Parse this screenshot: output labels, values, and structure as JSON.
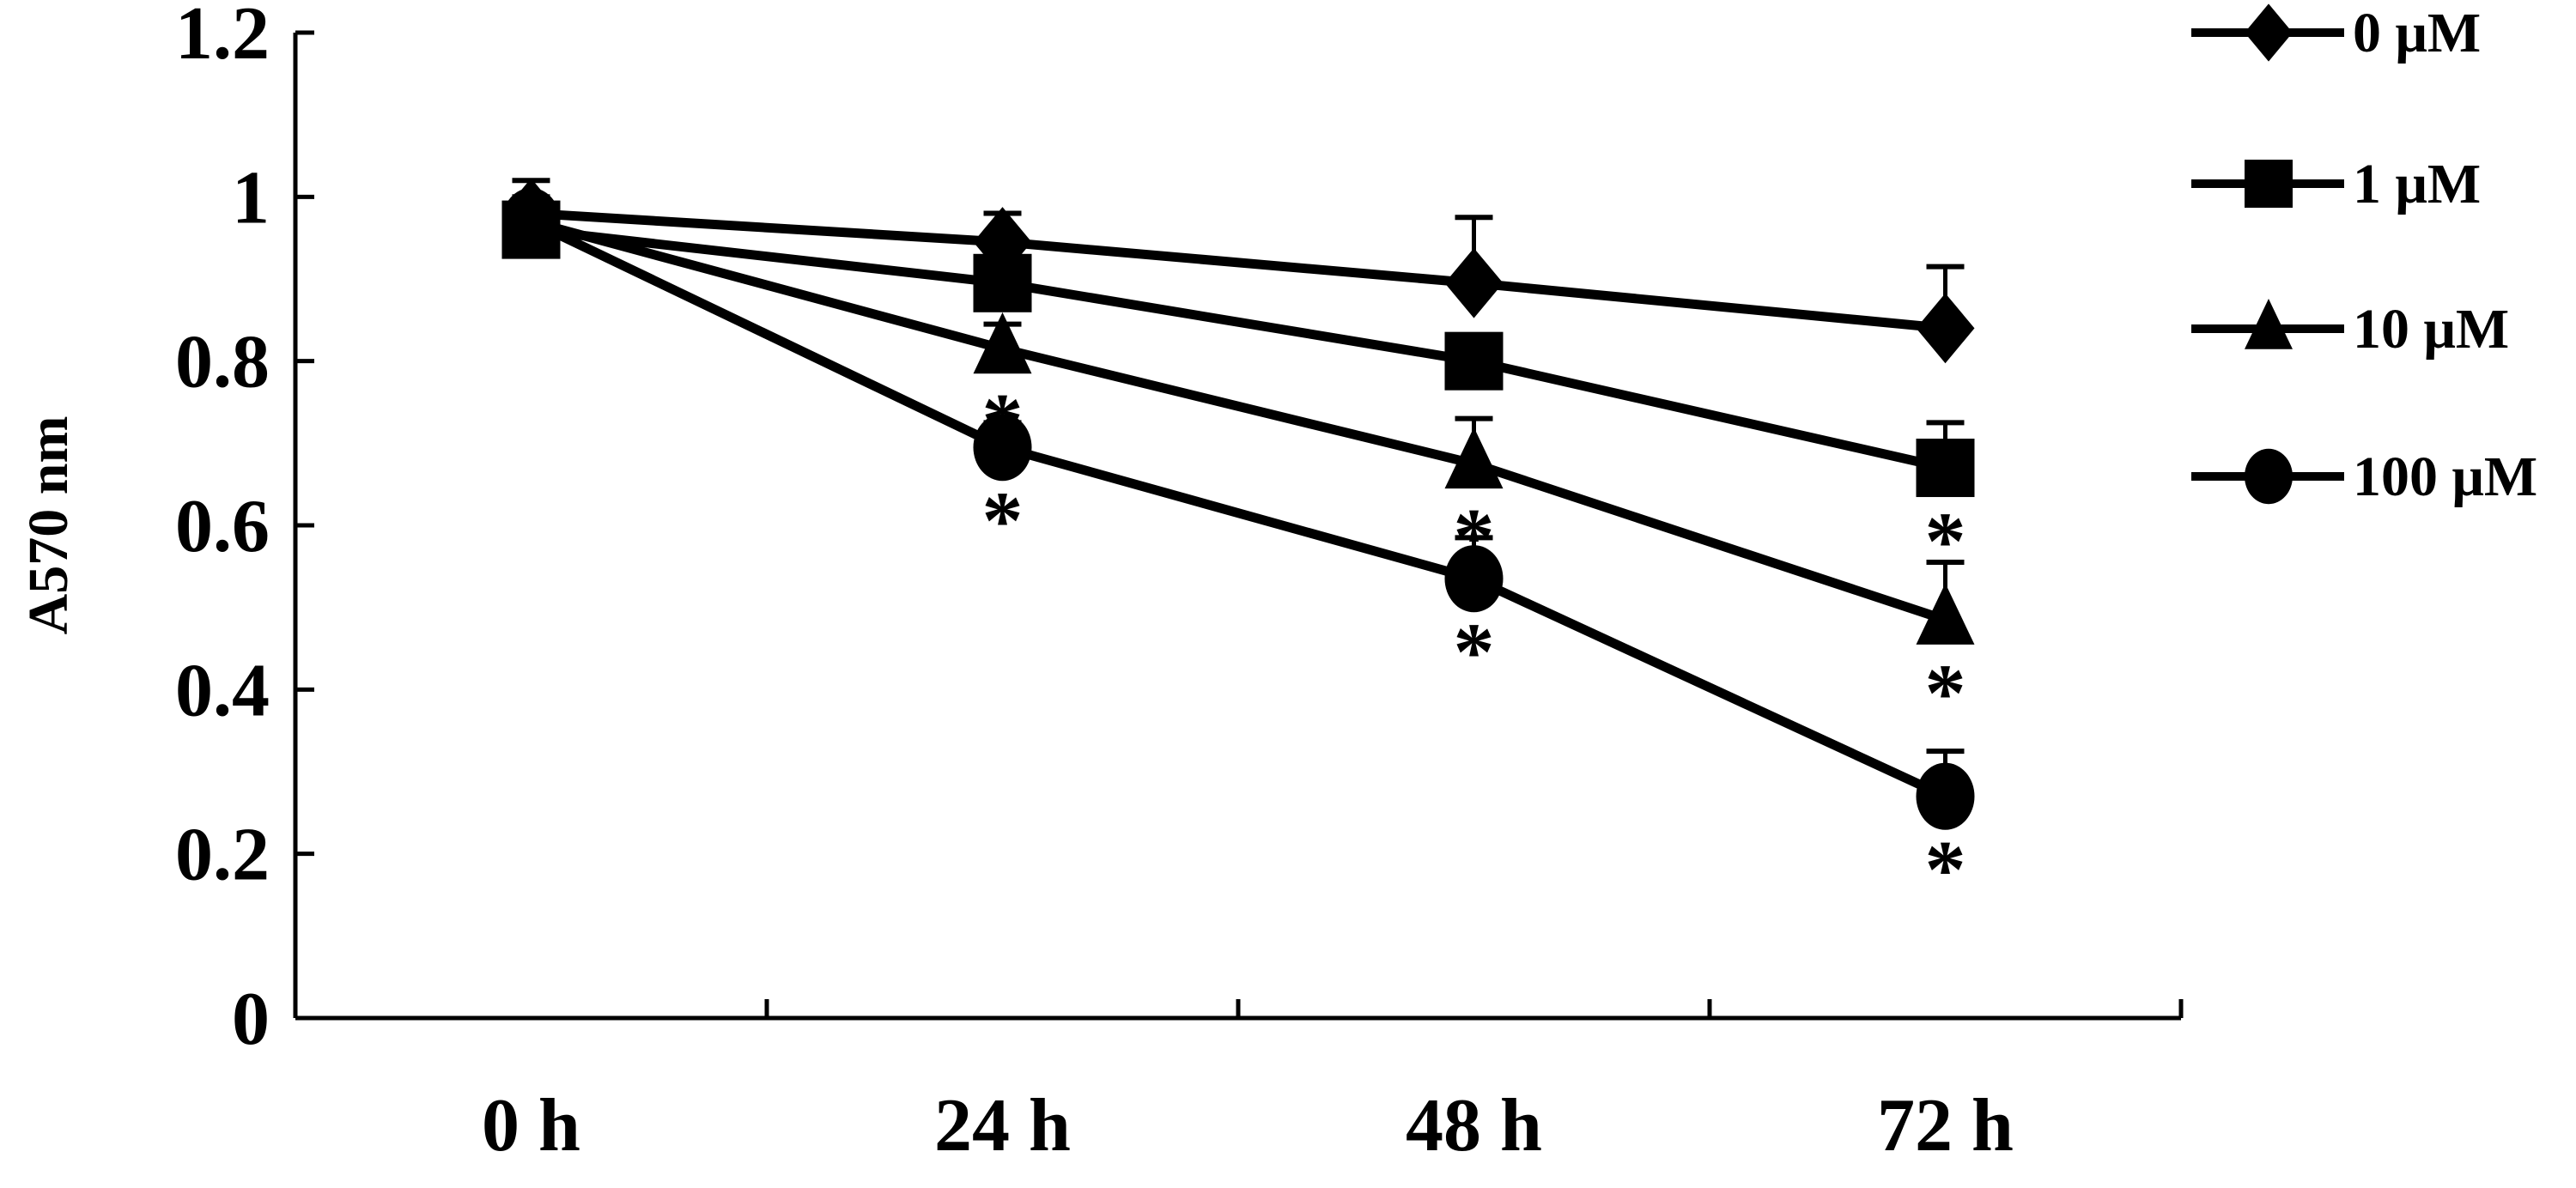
{
  "chart_data": {
    "type": "line",
    "title": "",
    "xlabel": "",
    "ylabel": "A570 nm",
    "categories": [
      "0 h",
      "24 h",
      "48 h",
      "72 h"
    ],
    "ylim": [
      0,
      1.2
    ],
    "yticks": [
      "0",
      "0.2",
      "0.4",
      "0.6",
      "0.8",
      "1",
      "1.2"
    ],
    "grid": false,
    "legend_position": "top-right",
    "series": [
      {
        "name": "0 μM",
        "marker": "diamond",
        "values": [
          0.98,
          0.945,
          0.895,
          0.84
        ],
        "error": [
          0.04,
          0.035,
          0.08,
          0.075
        ],
        "significant": [
          false,
          false,
          false,
          false
        ]
      },
      {
        "name": "1 μM",
        "marker": "square",
        "values": [
          0.96,
          0.895,
          0.8,
          0.67
        ],
        "error": [
          0.03,
          0.03,
          0.03,
          0.055
        ],
        "significant": [
          false,
          false,
          false,
          true
        ]
      },
      {
        "name": "10 μM",
        "marker": "triangle",
        "values": [
          0.97,
          0.815,
          0.675,
          0.485
        ],
        "error": [
          0.03,
          0.03,
          0.055,
          0.07
        ],
        "significant": [
          false,
          true,
          true,
          true
        ]
      },
      {
        "name": "100 μM",
        "marker": "circle",
        "values": [
          0.97,
          0.695,
          0.535,
          0.27
        ],
        "error": [
          0.03,
          0.03,
          0.05,
          0.055
        ],
        "significant": [
          false,
          true,
          true,
          true
        ]
      }
    ],
    "annotation_symbol": "*",
    "color": "#000000"
  }
}
